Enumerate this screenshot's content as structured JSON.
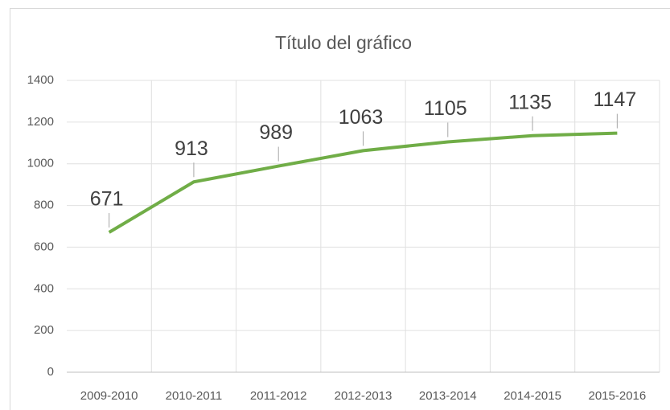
{
  "chart_data": {
    "type": "line",
    "title": "Título del gráfico",
    "categories": [
      "2009-2010",
      "2010-2011",
      "2011-2012",
      "2012-2013",
      "2013-2014",
      "2014-2015",
      "2015-2016"
    ],
    "values": [
      671,
      913,
      989,
      1063,
      1105,
      1135,
      1147
    ],
    "color": "#70ad47",
    "ylim": [
      0,
      1400
    ],
    "yticks": [
      0,
      200,
      400,
      600,
      800,
      1000,
      1200,
      1400
    ],
    "grid": true,
    "data_labels": true
  }
}
